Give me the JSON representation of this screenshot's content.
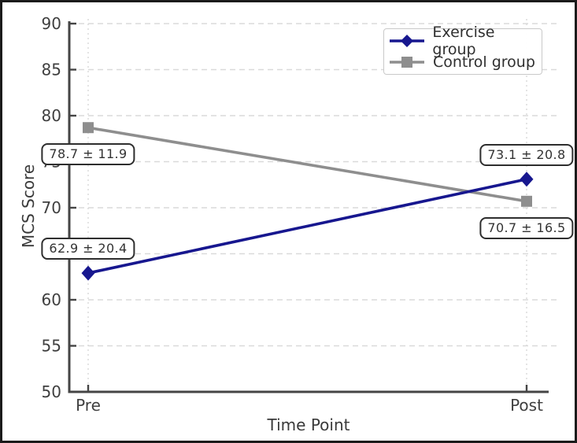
{
  "chart_data": {
    "type": "line",
    "title": "",
    "xlabel": "Time Point",
    "ylabel": "MCS Score",
    "categories": [
      "Pre",
      "Post"
    ],
    "ylim": [
      50,
      90
    ],
    "yticks": [
      50,
      55,
      60,
      65,
      70,
      75,
      80,
      85,
      90
    ],
    "grid": true,
    "legend_position": "upper right",
    "series": [
      {
        "name": "Exercise group",
        "values": [
          62.9,
          73.1
        ],
        "sd": [
          20.4,
          20.8
        ],
        "annotations": [
          "62.9 ± 20.4",
          "73.1 ± 20.8"
        ],
        "annotation_side": "above",
        "color": "#17178f",
        "marker": "diamond"
      },
      {
        "name": "Control group",
        "values": [
          78.7,
          70.7
        ],
        "sd": [
          11.9,
          16.5
        ],
        "annotations": [
          "78.7 ± 11.9",
          "70.7 ± 16.5"
        ],
        "annotation_side": "below",
        "color": "#8e8e8e",
        "marker": "square"
      }
    ]
  }
}
